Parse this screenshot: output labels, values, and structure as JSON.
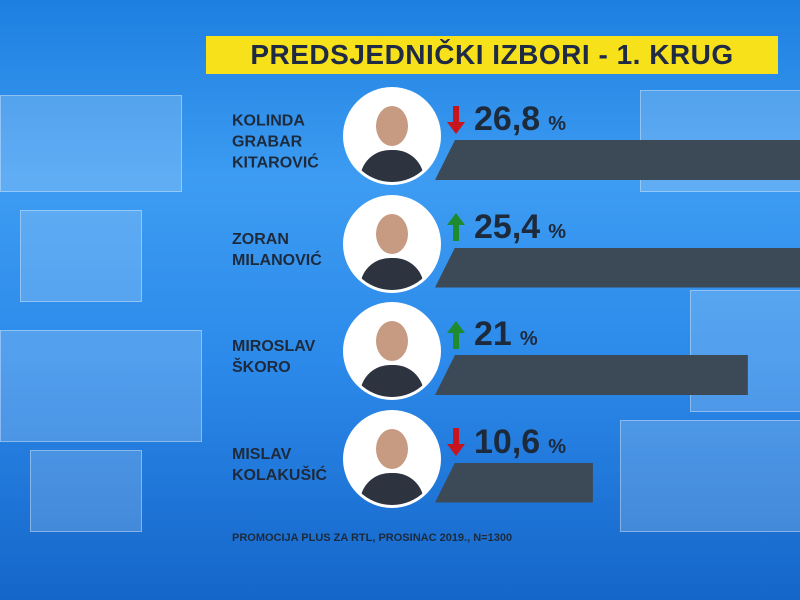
{
  "chart_data": {
    "type": "bar",
    "orientation": "horizontal",
    "title": "PREDSJEDNIČKI IZBORI - 1. KRUG",
    "categories": [
      "KOLINDA GRABAR KITAROVIĆ",
      "ZORAN MILANOVIĆ",
      "MIROSLAV ŠKORO",
      "MISLAV KOLAKUŠIĆ"
    ],
    "values": [
      26.8,
      25.4,
      21,
      10.6
    ],
    "value_labels": [
      "26,8",
      "25,4",
      "21",
      "10,6"
    ],
    "unit": "%",
    "trend": [
      "down",
      "up",
      "up",
      "down"
    ],
    "trend_colors": {
      "up": "#1e8c2e",
      "down": "#c8141c"
    },
    "color": "#3b4a56",
    "xlim": [
      0,
      24.5
    ],
    "source": "PROMOCIJA PLUS ZA RTL, PROSINAC 2019., N=1300"
  }
}
